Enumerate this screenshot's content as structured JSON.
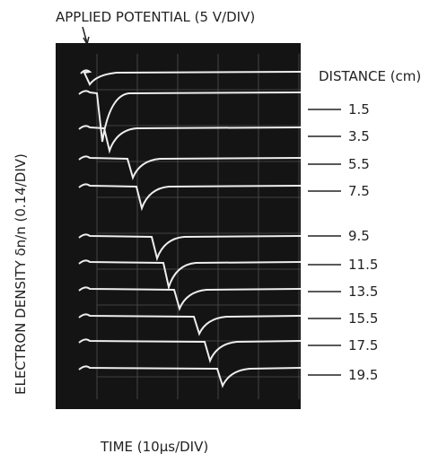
{
  "figure": {
    "top_label": "APPLIED POTENTIAL (5 V/DIV)",
    "y_label": "ELECTRON DENSITY δn/n (0.14/DIV)",
    "x_label": "TIME (10μs/DIV)",
    "distance_header": "DISTANCE (cm)",
    "distances": [
      "1.5",
      "3.5",
      "5.5",
      "7.5",
      "9.5",
      "11.5",
      "13.5",
      "15.5",
      "17.5",
      "19.5"
    ]
  }
}
